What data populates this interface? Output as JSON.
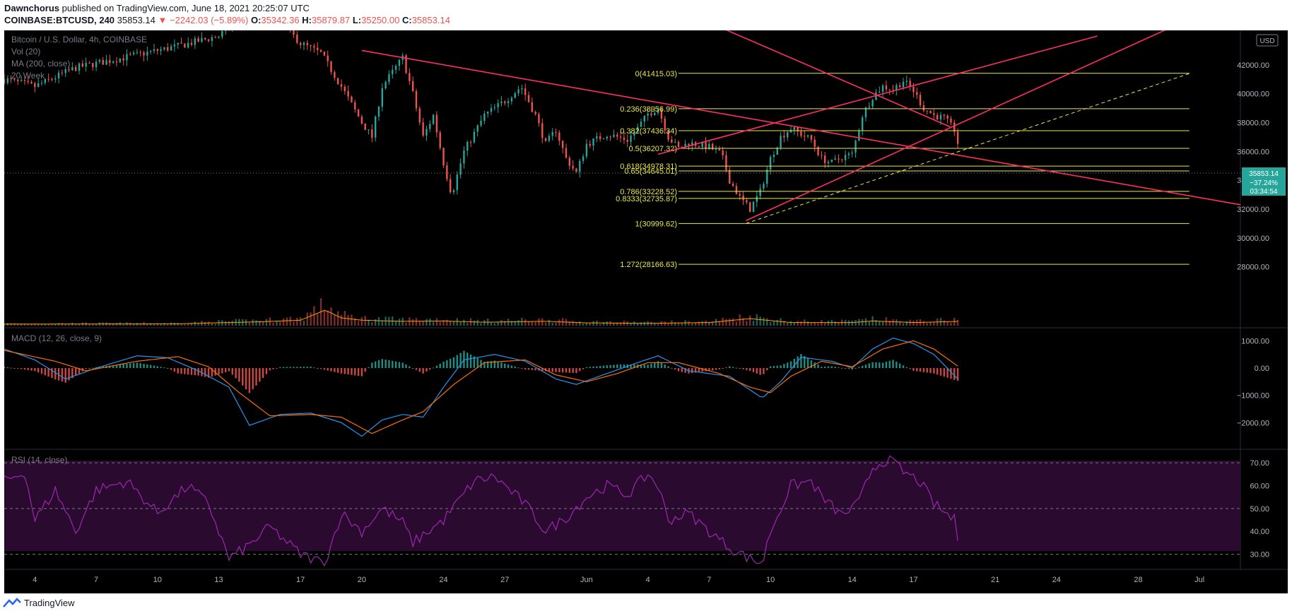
{
  "header": {
    "author": "Dawnchorus",
    "published_text": "published on TradingView.com, June 18, 2021 20:25:07 UTC",
    "symbol": "COINBASE:BTCUSD, 240",
    "price": "35853.14",
    "change": "−2242.03 (−5.89%)",
    "o_label": "O:",
    "o": "35342.36",
    "h_label": "H:",
    "h": "35879.87",
    "l_label": "L:",
    "l": "35250.00",
    "c_label": "C:",
    "c": "35853.14"
  },
  "legend": {
    "title": "Bitcoin / U.S. Dollar, 4h, COINBASE",
    "vol": "Vol (20)",
    "ma": "MA (200, close)",
    "week": "20 Week",
    "macd": "MACD (12, 26, close, 9)",
    "rsi": "RSI (14, close)"
  },
  "currency_badge": "USD",
  "price_label": {
    "price": "35853.14",
    "change": "−37.24%",
    "countdown": "03:34:54"
  },
  "footer": {
    "brand": "TradingView"
  },
  "colors": {
    "background": "#000000",
    "up": "#26a69a",
    "down": "#ef5350",
    "trendline": "#ff2e63",
    "fib": "#e8e84a",
    "ma": "#ff9800",
    "macd_line": "#2196f3",
    "signal_line": "#ff6d00",
    "rsi": "#9c27b0",
    "rsi_band": "#2a0a2e",
    "price_label_bg": "#26a69a"
  },
  "chart_data": {
    "type": "candlestick",
    "price_axis": {
      "ticks": [
        "28000.00",
        "30000.00",
        "32000.00",
        "34000.00",
        "36000.00",
        "38000.00",
        "40000.00",
        "42000.00"
      ],
      "range": [
        27000,
        44000
      ]
    },
    "macd_axis": {
      "ticks": [
        "1000.00",
        "0.00",
        "−1000.00",
        "−2000.00"
      ],
      "range": [
        -2900,
        1400
      ]
    },
    "rsi_axis": {
      "ticks": [
        "70.00",
        "60.00",
        "50.00",
        "40.00",
        "30.00"
      ],
      "levels": [
        70,
        50,
        30
      ],
      "range": [
        24,
        75
      ]
    },
    "time_axis": {
      "labels": [
        "4",
        "7",
        "10",
        "13",
        "17",
        "20",
        "24",
        "27",
        "Jun",
        "4",
        "7",
        "10",
        "14",
        "17",
        "21",
        "24",
        "28",
        "Jul"
      ],
      "days": [
        -27,
        -24,
        -21,
        -18,
        -14,
        -11,
        -7,
        -4,
        0,
        3,
        6,
        9,
        13,
        16,
        20,
        23,
        27,
        30
      ],
      "range": [
        -28.5,
        32
      ]
    },
    "fib_levels": [
      {
        "label": "0(41415.03)",
        "value": 41415.03
      },
      {
        "label": "0.236(38956.99)",
        "value": 38956.99
      },
      {
        "label": "0.382(37436.34)",
        "value": 37436.34
      },
      {
        "label": "0.5(36207.32)",
        "value": 36207.32
      },
      {
        "label": "0.618(34978.31)",
        "value": 34978.31
      },
      {
        "label": "0.65(34645.01)",
        "value": 34645.01
      },
      {
        "label": "0.786(33228.52)",
        "value": 33228.52
      },
      {
        "label": "0.8333(32735.87)",
        "value": 32735.87
      },
      {
        "label": "1(30999.62)",
        "value": 30999.62
      },
      {
        "label": "1.272(28166.63)",
        "value": 28166.63
      }
    ],
    "fib_range_days": [
      4.5,
      29.5
    ],
    "trendlines": [
      {
        "name": "descending",
        "from": [
          -11,
          43000
        ],
        "to": [
          32,
          32300
        ]
      },
      {
        "name": "channel-lower",
        "from": [
          7.8,
          31200
        ],
        "to": [
          30,
          45500
        ]
      },
      {
        "name": "channel-upper",
        "from": [
          3.5,
          35800
        ],
        "to": [
          25,
          44000
        ]
      },
      {
        "name": "long-descending",
        "from": [
          1,
          48000
        ],
        "to": [
          17.8,
          37700
        ]
      },
      {
        "name": "dashed-diagonal",
        "from": [
          7.8,
          31000
        ],
        "to": [
          29.5,
          41400
        ],
        "dashed": true
      }
    ],
    "price_path": [
      [
        -28.5,
        41000
      ],
      [
        -27,
        40500
      ],
      [
        -25,
        41800
      ],
      [
        -24,
        42100
      ],
      [
        -22,
        42700
      ],
      [
        -20,
        43300
      ],
      [
        -18,
        44000
      ],
      [
        -16,
        46500
      ],
      [
        -15,
        45000
      ],
      [
        -14,
        43500
      ],
      [
        -13,
        42800
      ],
      [
        -12,
        40500
      ],
      [
        -11,
        38000
      ],
      [
        -10.5,
        37000
      ],
      [
        -10,
        40500
      ],
      [
        -9,
        42500
      ],
      [
        -8.5,
        40000
      ],
      [
        -8,
        37000
      ],
      [
        -7.5,
        38500
      ],
      [
        -7,
        35200
      ],
      [
        -6.6,
        33000
      ],
      [
        -6,
        36000
      ],
      [
        -5,
        38500
      ],
      [
        -4,
        39500
      ],
      [
        -3.2,
        40500
      ],
      [
        -2.5,
        38500
      ],
      [
        -2,
        36500
      ],
      [
        -1.5,
        37500
      ],
      [
        -1,
        35500
      ],
      [
        -0.5,
        34500
      ],
      [
        0,
        36500
      ],
      [
        1,
        37200
      ],
      [
        2,
        36800
      ],
      [
        2.5,
        37600
      ],
      [
        3,
        38600
      ],
      [
        3.5,
        39000
      ],
      [
        4,
        37000
      ],
      [
        4.5,
        36200
      ],
      [
        5,
        36600
      ],
      [
        6,
        36300
      ],
      [
        6.6,
        35800
      ],
      [
        7,
        34000
      ],
      [
        7.5,
        32800
      ],
      [
        8,
        32000
      ],
      [
        8.5,
        33200
      ],
      [
        9,
        35500
      ],
      [
        9.5,
        37000
      ],
      [
        10,
        37600
      ],
      [
        11,
        36800
      ],
      [
        11.5,
        35500
      ],
      [
        12,
        35200
      ],
      [
        12.5,
        35600
      ],
      [
        13,
        35800
      ],
      [
        13.5,
        38500
      ],
      [
        14,
        39800
      ],
      [
        14.5,
        40500
      ],
      [
        15,
        40300
      ],
      [
        15.5,
        40900
      ],
      [
        16,
        40200
      ],
      [
        16.5,
        39000
      ],
      [
        17,
        38500
      ],
      [
        17.5,
        38300
      ],
      [
        18,
        37500
      ],
      [
        18.3,
        35853
      ]
    ],
    "volume_path": [
      [
        -28.5,
        0.1
      ],
      [
        -20,
        0.12
      ],
      [
        -16,
        0.25
      ],
      [
        -14,
        0.35
      ],
      [
        -12.8,
        1.0
      ],
      [
        -12,
        0.5
      ],
      [
        -11,
        0.35
      ],
      [
        -9,
        0.28
      ],
      [
        -7,
        0.3
      ],
      [
        -5,
        0.22
      ],
      [
        -2,
        0.28
      ],
      [
        0,
        0.18
      ],
      [
        3,
        0.15
      ],
      [
        6,
        0.2
      ],
      [
        8,
        0.45
      ],
      [
        10,
        0.2
      ],
      [
        13,
        0.2
      ],
      [
        14,
        0.3
      ],
      [
        16,
        0.2
      ],
      [
        18.3,
        0.28
      ]
    ],
    "macd_path": [
      [
        -28.5,
        700
      ],
      [
        -27,
        300
      ],
      [
        -25.5,
        -400
      ],
      [
        -24,
        0
      ],
      [
        -22,
        450
      ],
      [
        -20.5,
        380
      ],
      [
        -19,
        -100
      ],
      [
        -17.5,
        -700
      ],
      [
        -16.5,
        -2100
      ],
      [
        -15,
        -1700
      ],
      [
        -13.5,
        -1650
      ],
      [
        -12,
        -2000
      ],
      [
        -11,
        -2500
      ],
      [
        -10,
        -1900
      ],
      [
        -9,
        -1700
      ],
      [
        -8,
        -1800
      ],
      [
        -7,
        -700
      ],
      [
        -6,
        300
      ],
      [
        -4.5,
        500
      ],
      [
        -3,
        250
      ],
      [
        -1.5,
        -400
      ],
      [
        -0.5,
        -600
      ],
      [
        1,
        -200
      ],
      [
        2.5,
        200
      ],
      [
        3.5,
        450
      ],
      [
        5,
        -100
      ],
      [
        7,
        -300
      ],
      [
        8,
        -800
      ],
      [
        8.6,
        -1100
      ],
      [
        9.5,
        -500
      ],
      [
        10.5,
        400
      ],
      [
        12,
        250
      ],
      [
        13,
        0
      ],
      [
        14,
        700
      ],
      [
        15,
        1100
      ],
      [
        16,
        900
      ],
      [
        17,
        500
      ],
      [
        18.3,
        -500
      ]
    ],
    "signal_path": [
      [
        -28.5,
        650
      ],
      [
        -26,
        250
      ],
      [
        -24.5,
        -100
      ],
      [
        -22,
        250
      ],
      [
        -20,
        420
      ],
      [
        -18.5,
        50
      ],
      [
        -17,
        -900
      ],
      [
        -15.5,
        -1750
      ],
      [
        -13.5,
        -1700
      ],
      [
        -12,
        -1800
      ],
      [
        -10.5,
        -2400
      ],
      [
        -9,
        -1900
      ],
      [
        -8,
        -1600
      ],
      [
        -6.5,
        -600
      ],
      [
        -5,
        200
      ],
      [
        -3,
        300
      ],
      [
        -1.5,
        -250
      ],
      [
        0,
        -500
      ],
      [
        1.5,
        -200
      ],
      [
        3,
        200
      ],
      [
        4.5,
        200
      ],
      [
        6.5,
        -200
      ],
      [
        8,
        -700
      ],
      [
        9,
        -900
      ],
      [
        10,
        -300
      ],
      [
        11.5,
        250
      ],
      [
        13,
        50
      ],
      [
        14.5,
        700
      ],
      [
        16,
        1000
      ],
      [
        17,
        700
      ],
      [
        18.3,
        0
      ]
    ],
    "rsi_path": [
      [
        -28.5,
        62
      ],
      [
        -27.5,
        66
      ],
      [
        -27,
        45
      ],
      [
        -26,
        58
      ],
      [
        -25,
        40
      ],
      [
        -24,
        58
      ],
      [
        -22.5,
        62
      ],
      [
        -21,
        48
      ],
      [
        -19.5,
        60
      ],
      [
        -18.5,
        52
      ],
      [
        -17.5,
        28
      ],
      [
        -16.5,
        34
      ],
      [
        -15.5,
        42
      ],
      [
        -14,
        30
      ],
      [
        -12.8,
        26
      ],
      [
        -12,
        48
      ],
      [
        -11,
        40
      ],
      [
        -10,
        50
      ],
      [
        -9,
        44
      ],
      [
        -8.5,
        35
      ],
      [
        -7,
        45
      ],
      [
        -5.5,
        62
      ],
      [
        -4.5,
        64
      ],
      [
        -3,
        52
      ],
      [
        -2,
        40
      ],
      [
        -1,
        46
      ],
      [
        0,
        55
      ],
      [
        1,
        60
      ],
      [
        2,
        56
      ],
      [
        3,
        65
      ],
      [
        3.5,
        60
      ],
      [
        4,
        45
      ],
      [
        5,
        48
      ],
      [
        6,
        40
      ],
      [
        7,
        33
      ],
      [
        8,
        28
      ],
      [
        8.6,
        26
      ],
      [
        9,
        40
      ],
      [
        10,
        60
      ],
      [
        11,
        62
      ],
      [
        11.5,
        55
      ],
      [
        12.5,
        47
      ],
      [
        13.3,
        52
      ],
      [
        14,
        68
      ],
      [
        14.8,
        72
      ],
      [
        15.5,
        66
      ],
      [
        16.3,
        62
      ],
      [
        17,
        52
      ],
      [
        18,
        45
      ],
      [
        18.3,
        31
      ]
    ]
  }
}
